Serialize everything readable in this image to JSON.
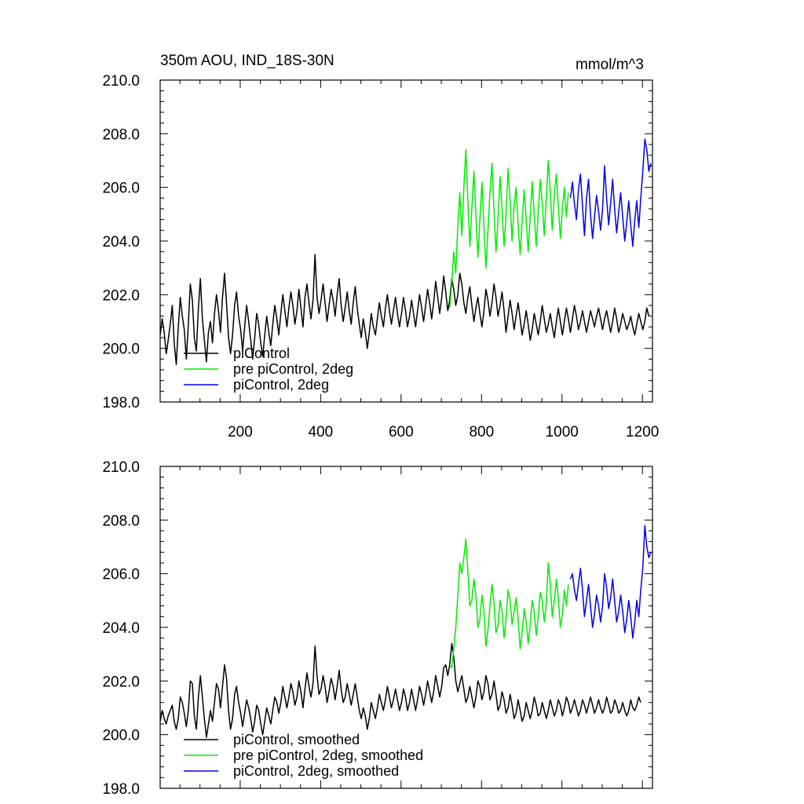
{
  "chart_data": [
    {
      "type": "line",
      "title_left": "350m AOU, IND_18S-30N",
      "title_right": "mmol/m^3",
      "xlim": [
        1,
        1225
      ],
      "ylim": [
        198.0,
        210.0
      ],
      "x_ticks": [
        200,
        400,
        600,
        800,
        1000,
        1200
      ],
      "x_tick_labels": [
        "200",
        "400",
        "600",
        "800",
        "1000",
        "1200"
      ],
      "y_ticks": [
        198,
        200,
        202,
        204,
        206,
        208,
        210
      ],
      "y_tick_labels": [
        "198.0",
        "200.0",
        "202.0",
        "204.0",
        "206.0",
        "208.0",
        "210.0"
      ],
      "series": [
        {
          "name": "piControl",
          "color": "#000000",
          "x_start": 1,
          "x_end": 1200,
          "x_step": 5,
          "values": [
            200.5,
            201.1,
            200.6,
            199.8,
            200.3,
            200.9,
            201.6,
            200.2,
            199.4,
            200.8,
            201.9,
            201.2,
            200.7,
            199.6,
            200.9,
            202.4,
            201.8,
            200.4,
            199.9,
            201.5,
            202.6,
            201.1,
            200.3,
            199.5,
            200.6,
            201.0,
            200.2,
            201.3,
            202.0,
            201.4,
            200.6,
            201.9,
            202.8,
            201.7,
            200.4,
            199.8,
            200.5,
            201.6,
            202.1,
            201.2,
            200.7,
            199.9,
            200.8,
            201.6,
            201.0,
            200.3,
            199.6,
            200.4,
            201.3,
            200.9,
            200.2,
            199.7,
            200.5,
            201.2,
            200.6,
            200.1,
            200.9,
            201.6,
            201.1,
            200.5,
            201.3,
            202.0,
            201.4,
            200.8,
            201.5,
            202.1,
            201.6,
            200.9,
            201.4,
            202.2,
            201.5,
            200.8,
            201.9,
            202.4,
            201.7,
            201.1,
            201.8,
            203.5,
            201.9,
            201.3,
            201.8,
            202.4,
            201.7,
            201.0,
            201.6,
            202.2,
            201.8,
            201.2,
            202.0,
            202.6,
            201.6,
            201.0,
            201.5,
            202.1,
            201.4,
            200.9,
            201.7,
            202.3,
            201.5,
            200.9,
            200.4,
            201.1,
            200.6,
            200.0,
            200.6,
            201.3,
            200.8,
            200.5,
            201.1,
            201.7,
            201.2,
            200.8,
            201.5,
            202.0,
            201.4,
            200.9,
            201.4,
            201.9,
            201.3,
            200.8,
            201.3,
            201.9,
            201.4,
            200.8,
            201.2,
            201.8,
            201.3,
            200.8,
            201.4,
            202.0,
            201.5,
            201.0,
            201.6,
            202.2,
            201.7,
            201.1,
            201.7,
            202.5,
            201.9,
            201.3,
            201.9,
            202.7,
            202.1,
            201.4,
            201.8,
            202.6,
            202.2,
            201.6,
            202.0,
            202.8,
            202.4,
            201.7,
            201.3,
            201.9,
            202.3,
            201.6,
            201.0,
            201.5,
            201.9,
            201.3,
            200.8,
            201.4,
            202.2,
            201.8,
            201.2,
            201.7,
            202.4,
            201.9,
            201.2,
            201.6,
            202.1,
            201.4,
            200.6,
            201.2,
            201.8,
            201.3,
            200.7,
            201.2,
            201.7,
            201.1,
            200.5,
            200.9,
            201.4,
            200.9,
            200.3,
            200.7,
            201.3,
            200.9,
            200.5,
            201.0,
            201.6,
            201.1,
            200.6,
            200.9,
            201.3,
            200.8,
            200.4,
            201.0,
            201.5,
            201.0,
            200.5,
            201.0,
            201.5,
            201.1,
            200.6,
            201.1,
            201.6,
            201.2,
            200.7,
            201.0,
            201.4,
            201.0,
            200.6,
            201.0,
            201.4,
            201.1,
            200.8,
            201.2,
            201.5,
            201.1,
            200.7,
            201.1,
            201.4,
            201.0,
            200.6,
            201.0,
            201.5,
            201.1,
            200.6,
            200.9,
            201.3,
            201.0,
            200.7,
            200.9,
            201.2,
            200.8,
            200.5,
            200.9,
            201.3,
            201.0,
            200.7,
            201.0,
            201.5,
            201.2
          ]
        },
        {
          "name": "pre piControl, 2deg",
          "color": "#00ee00",
          "x_start": 721,
          "x_end": 1016,
          "x_step": 5,
          "values": [
            201.5,
            202.4,
            203.6,
            202.8,
            204.6,
            205.8,
            204.2,
            206.0,
            207.4,
            205.5,
            203.8,
            205.2,
            206.6,
            205.0,
            203.4,
            204.8,
            206.2,
            204.5,
            203.0,
            204.4,
            205.8,
            206.9,
            205.1,
            203.6,
            204.8,
            206.4,
            205.2,
            203.8,
            205.0,
            206.7,
            205.5,
            204.0,
            205.3,
            206.0,
            204.6,
            203.5,
            204.7,
            205.9,
            204.8,
            203.6,
            204.9,
            206.2,
            205.0,
            203.8,
            205.1,
            206.3,
            205.4,
            204.2,
            205.6,
            207.0,
            205.8,
            204.4,
            205.7,
            206.5,
            205.3,
            204.1,
            205.2,
            206.0,
            204.9,
            205.8
          ]
        },
        {
          "name": "piControl, 2deg",
          "color": "#0000ee",
          "x_start": 1021,
          "x_end": 1221,
          "x_step": 5,
          "values": [
            205.6,
            206.2,
            205.4,
            204.8,
            205.9,
            206.5,
            205.3,
            204.2,
            205.6,
            206.3,
            205.0,
            204.1,
            204.9,
            205.7,
            205.1,
            204.4,
            205.2,
            206.8,
            205.6,
            204.6,
            205.4,
            206.3,
            205.2,
            204.3,
            205.1,
            205.8,
            204.9,
            204.0,
            204.7,
            205.5,
            204.6,
            203.8,
            204.8,
            205.5,
            204.5,
            205.6,
            206.6,
            207.8,
            207.4,
            206.6,
            206.9
          ]
        }
      ],
      "legend": [
        "piControl",
        "pre piControl, 2deg",
        "piControl, 2deg"
      ],
      "legend_placement": "bottom-left",
      "grid": false
    },
    {
      "type": "line",
      "xlim": [
        1,
        1225
      ],
      "ylim": [
        198.0,
        210.0
      ],
      "x_ticks": [
        200,
        400,
        600,
        800,
        1000,
        1200
      ],
      "y_ticks": [
        198,
        200,
        202,
        204,
        206,
        208,
        210
      ],
      "y_tick_labels": [
        "198.0",
        "200.0",
        "202.0",
        "204.0",
        "206.0",
        "208.0",
        "210.0"
      ],
      "series": [
        {
          "name": "piControl, smoothed",
          "color": "#000000",
          "x_start": 1,
          "x_end": 1200,
          "x_step": 5,
          "values": [
            200.5,
            200.9,
            200.6,
            200.4,
            200.7,
            200.9,
            201.1,
            200.5,
            200.2,
            200.6,
            201.4,
            201.2,
            200.8,
            200.3,
            200.9,
            202.0,
            201.9,
            200.7,
            200.2,
            201.4,
            202.2,
            201.4,
            200.6,
            199.9,
            200.4,
            200.9,
            200.5,
            201.2,
            201.9,
            201.7,
            201.0,
            201.8,
            202.6,
            202.1,
            200.9,
            200.2,
            200.6,
            201.5,
            201.8,
            201.2,
            200.8,
            200.3,
            200.8,
            201.3,
            201.0,
            200.6,
            200.1,
            200.5,
            201.1,
            200.9,
            200.4,
            200.0,
            200.5,
            201.0,
            200.7,
            200.4,
            200.9,
            201.4,
            201.2,
            200.8,
            201.2,
            201.8,
            201.4,
            201.0,
            201.4,
            201.9,
            201.6,
            201.1,
            201.4,
            202.0,
            201.6,
            201.0,
            201.7,
            202.3,
            201.8,
            201.4,
            201.9,
            203.3,
            202.2,
            201.5,
            201.7,
            202.2,
            201.8,
            201.2,
            201.6,
            202.1,
            201.8,
            201.3,
            201.8,
            202.4,
            201.7,
            201.2,
            201.4,
            201.9,
            201.5,
            201.1,
            201.5,
            201.9,
            201.4,
            200.9,
            200.6,
            201.0,
            200.7,
            200.2,
            200.6,
            201.2,
            200.9,
            200.6,
            201.0,
            201.5,
            201.2,
            200.9,
            201.3,
            201.8,
            201.4,
            201.0,
            201.3,
            201.7,
            201.3,
            200.9,
            201.2,
            201.7,
            201.4,
            200.9,
            201.2,
            201.7,
            201.3,
            200.9,
            201.3,
            201.8,
            201.5,
            201.1,
            201.5,
            202.0,
            201.6,
            201.2,
            201.6,
            202.2,
            201.8,
            201.4,
            201.8,
            202.5,
            202.6,
            202.2,
            202.6,
            203.4,
            202.9,
            202.0,
            201.6,
            201.9,
            202.2,
            201.7,
            201.2,
            201.4,
            201.8,
            201.4,
            201.0,
            201.4,
            202.0,
            201.8,
            201.3,
            201.6,
            202.2,
            201.9,
            201.3,
            201.5,
            202.0,
            201.5,
            200.9,
            201.1,
            201.6,
            201.3,
            200.8,
            201.0,
            201.5,
            201.1,
            200.6,
            200.8,
            201.3,
            200.9,
            200.5,
            200.7,
            201.2,
            200.9,
            200.6,
            200.9,
            201.4,
            201.1,
            200.7,
            200.8,
            201.2,
            200.9,
            200.6,
            200.9,
            201.3,
            201.0,
            200.7,
            200.9,
            201.3,
            201.1,
            200.7,
            201.0,
            201.4,
            201.2,
            200.8,
            201.0,
            201.3,
            201.0,
            200.7,
            200.9,
            201.3,
            201.1,
            200.8,
            201.1,
            201.4,
            201.1,
            200.8,
            201.0,
            201.3,
            201.0,
            200.8,
            201.0,
            201.4,
            201.1,
            200.8,
            200.9,
            201.3,
            201.1,
            200.8,
            200.9,
            201.2,
            200.9,
            200.7,
            200.9,
            201.3,
            201.0,
            200.9,
            201.1,
            201.4,
            201.2
          ]
        },
        {
          "name": "pre piControl, 2deg, smoothed",
          "color": "#00ee00",
          "x_start": 721,
          "x_end": 1016,
          "x_step": 5,
          "values": [
            202.6,
            202.5,
            203.2,
            204.0,
            205.2,
            206.4,
            206.0,
            206.6,
            207.3,
            206.1,
            204.8,
            205.0,
            205.8,
            205.2,
            204.0,
            204.3,
            205.2,
            204.6,
            203.3,
            203.9,
            204.8,
            205.6,
            204.9,
            203.8,
            204.1,
            205.0,
            204.6,
            203.6,
            204.3,
            205.4,
            205.0,
            204.1,
            204.6,
            205.1,
            204.3,
            203.2,
            203.8,
            204.7,
            204.2,
            203.4,
            204.1,
            205.0,
            204.6,
            203.7,
            204.4,
            205.3,
            205.0,
            204.2,
            204.9,
            206.4,
            205.6,
            204.4,
            205.0,
            205.8,
            205.1,
            204.0,
            204.5,
            205.4,
            204.8,
            205.6
          ]
        },
        {
          "name": "piControl, 2deg, smoothed",
          "color": "#0000ee",
          "x_start": 1021,
          "x_end": 1221,
          "x_step": 5,
          "values": [
            205.8,
            206.0,
            205.4,
            205.0,
            205.6,
            206.2,
            205.4,
            204.4,
            205.0,
            205.6,
            204.8,
            204.0,
            204.5,
            205.2,
            204.8,
            204.2,
            204.8,
            206.0,
            205.5,
            204.7,
            205.1,
            205.8,
            205.0,
            204.2,
            204.6,
            205.2,
            204.6,
            203.8,
            204.3,
            205.0,
            204.4,
            203.6,
            204.2,
            205.0,
            204.4,
            205.4,
            206.2,
            207.8,
            207.0,
            206.6,
            206.8
          ]
        }
      ],
      "legend": [
        "piControl, smoothed",
        "pre piControl, 2deg, smoothed",
        "piControl, 2deg, smoothed"
      ],
      "legend_placement": "bottom-left",
      "grid": false
    }
  ]
}
